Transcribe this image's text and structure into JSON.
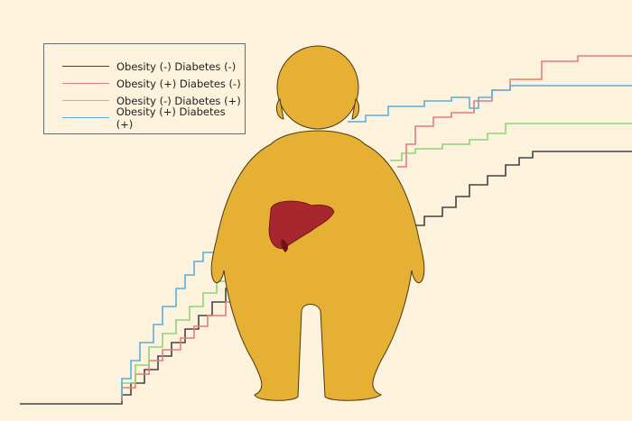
{
  "legend": {
    "items": [
      {
        "label": "Obesity (-) Diabetes (-)",
        "color": "#444444"
      },
      {
        "label": "Obesity (+) Diabetes (-)",
        "color": "#e77a7a"
      },
      {
        "label": "Obesity (-) Diabetes (+)",
        "color": "#8fd37a"
      },
      {
        "label": "Obesity (+) Diabetes (+)",
        "color": "#5aaee0"
      }
    ]
  },
  "colors": {
    "background": "#fdf3dc",
    "figure": "#e6b035",
    "liver": "#a8262e"
  },
  "icons": [
    "obese-person-illustration",
    "liver-icon"
  ]
}
